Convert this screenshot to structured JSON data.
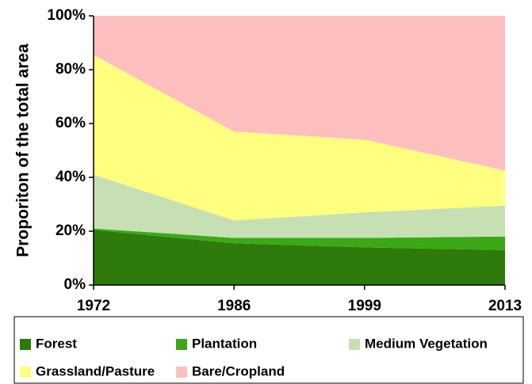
{
  "chart_data": {
    "type": "stacked_area",
    "y_label": "Proporiton of the total area",
    "x": [
      1972,
      1986,
      1999,
      2013
    ],
    "xlim": [
      1972,
      2013
    ],
    "xticks": [
      1972,
      1986,
      1999,
      2013
    ],
    "ylim": [
      0,
      100
    ],
    "yticks": [
      {
        "value": 0,
        "label": "0%"
      },
      {
        "value": 20,
        "label": "20%"
      },
      {
        "value": 40,
        "label": "40%"
      },
      {
        "value": 60,
        "label": "60%"
      },
      {
        "value": 80,
        "label": "80%"
      },
      {
        "value": 100,
        "label": "100%"
      }
    ],
    "series": [
      {
        "name": "Forest",
        "color": "#2e7a0a",
        "values": [
          20.5,
          15.5,
          14,
          13
        ]
      },
      {
        "name": "Plantation",
        "color": "#3ba816",
        "values": [
          0.5,
          2,
          3.5,
          5
        ]
      },
      {
        "name": "Medium Vegetation",
        "color": "#c6e0b4",
        "values": [
          20,
          6.5,
          9.5,
          11.5
        ]
      },
      {
        "name": "Grassland/Pasture",
        "color": "#ffff80",
        "values": [
          44.5,
          33,
          27,
          13
        ]
      },
      {
        "name": "Bare/Cropland",
        "color": "#ffbfbf",
        "values": [
          14.5,
          43,
          46,
          57.5
        ]
      }
    ]
  }
}
